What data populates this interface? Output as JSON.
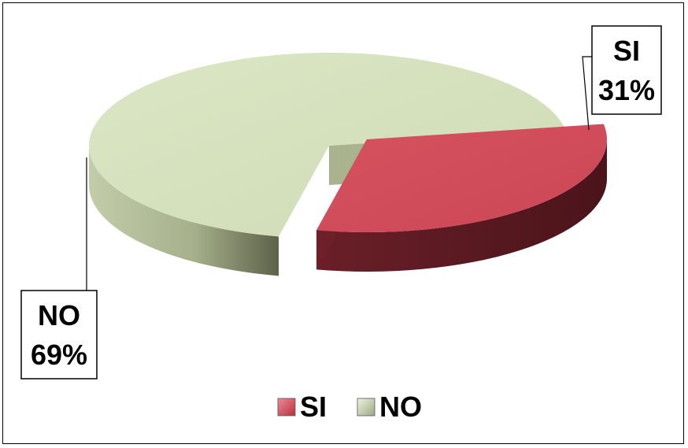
{
  "chart_data": {
    "type": "pie",
    "style": "3d-exploded",
    "series": [
      {
        "name": "",
        "values": [
          {
            "category": "SI",
            "value": 31,
            "label": "SI",
            "percent_label": "31%",
            "color": "#d24d5c",
            "side_color": "#5a1a22"
          },
          {
            "category": "NO",
            "value": 69,
            "label": "NO",
            "percent_label": "69%",
            "color": "#d3dfbb",
            "side_color": "#8a9670"
          }
        ]
      }
    ],
    "legend": {
      "placement": "bottom",
      "items": [
        {
          "label": "SI",
          "color": "#d24d5c"
        },
        {
          "label": "NO",
          "color": "#d3dfbb"
        }
      ]
    },
    "data_labels": true
  }
}
